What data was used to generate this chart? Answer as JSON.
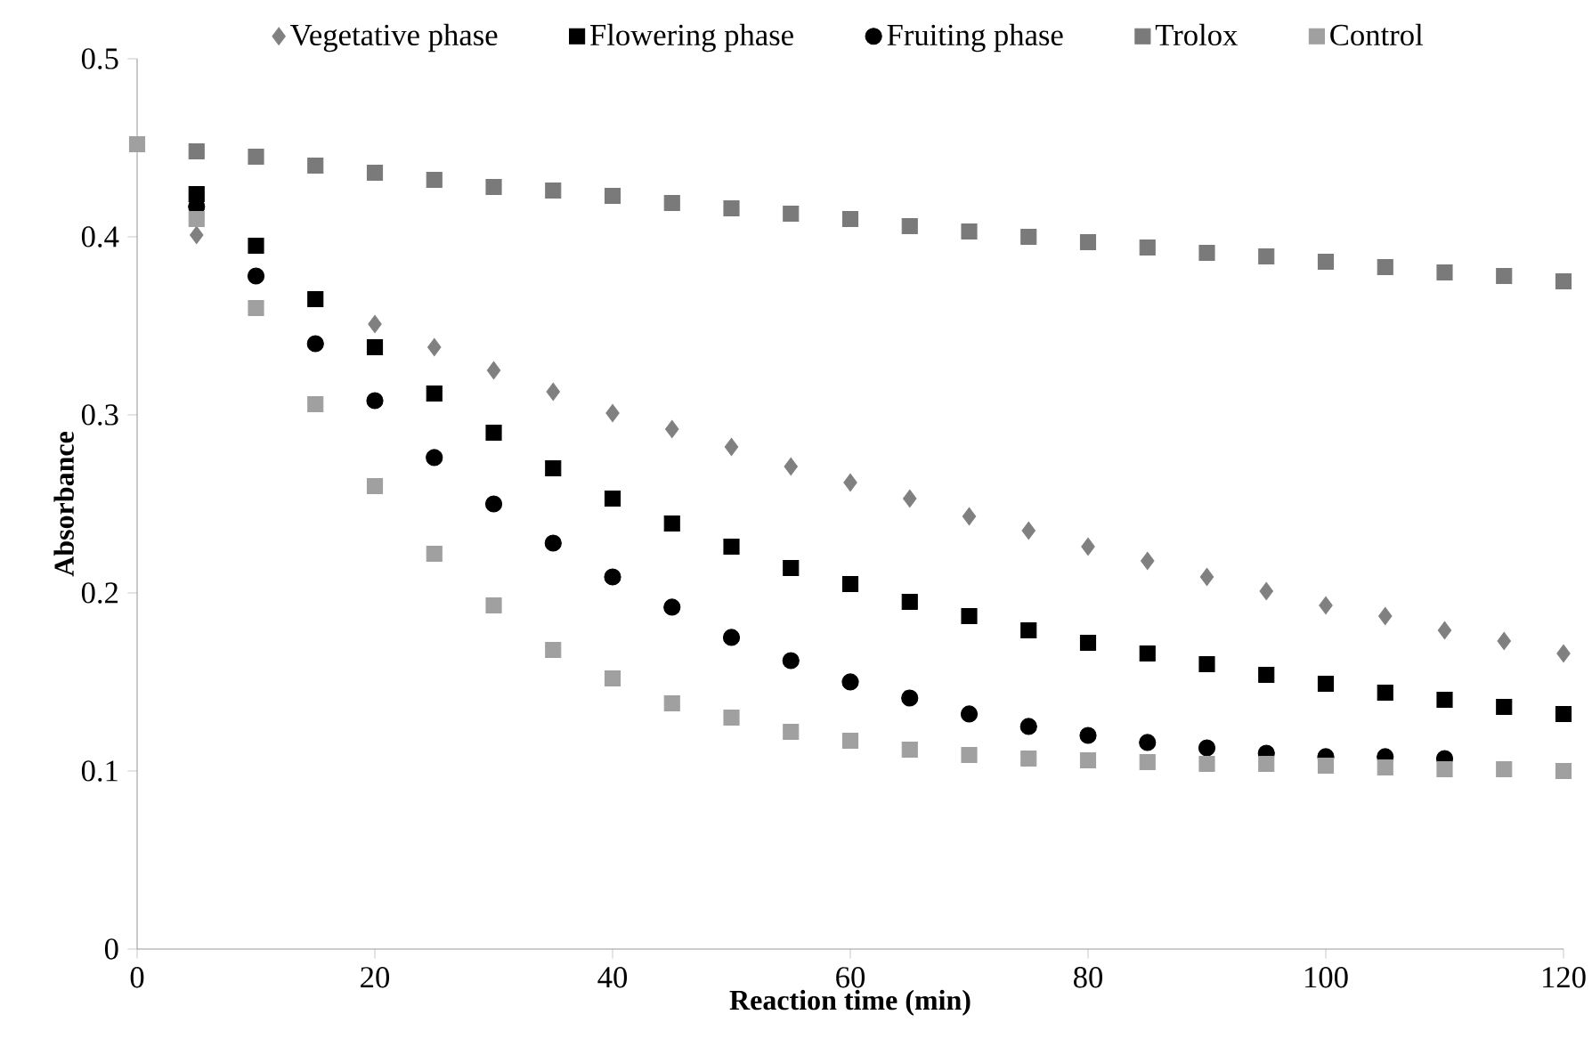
{
  "chart_data": {
    "type": "scatter",
    "xlabel": "Reaction time (min)",
    "ylabel": "Absorbance",
    "x": [
      0,
      5,
      10,
      15,
      20,
      25,
      30,
      35,
      40,
      45,
      50,
      55,
      60,
      65,
      70,
      75,
      80,
      85,
      90,
      95,
      100,
      105,
      110,
      115,
      120
    ],
    "xlim": [
      0,
      120
    ],
    "xticks": [
      0,
      20,
      40,
      60,
      80,
      100,
      120
    ],
    "ylim": [
      0,
      0.5
    ],
    "yticks": [
      0,
      0.1,
      0.2,
      0.3,
      0.4,
      0.5
    ],
    "grid": false,
    "legend": "top",
    "series": [
      {
        "name": "Vegetative phase",
        "color": "#808080",
        "marker": "diamond",
        "values": [
          null,
          0.401,
          null,
          null,
          0.351,
          0.338,
          0.325,
          0.313,
          0.301,
          0.292,
          0.282,
          0.271,
          0.262,
          0.253,
          0.243,
          0.235,
          0.226,
          0.218,
          0.209,
          0.201,
          0.193,
          0.187,
          0.179,
          0.173,
          0.166
        ]
      },
      {
        "name": "Flowering  phase",
        "color": "#000000",
        "marker": "square",
        "values": [
          null,
          0.424,
          0.395,
          0.365,
          0.338,
          0.312,
          0.29,
          0.27,
          0.253,
          0.239,
          0.226,
          0.214,
          0.205,
          0.195,
          0.187,
          0.179,
          0.172,
          0.166,
          0.16,
          0.154,
          0.149,
          0.144,
          0.14,
          0.136,
          0.132
        ]
      },
      {
        "name": "Fruiting  phase",
        "color": "#000000",
        "marker": "circle",
        "values": [
          null,
          0.417,
          0.378,
          0.34,
          0.308,
          0.276,
          0.25,
          0.228,
          0.209,
          0.192,
          0.175,
          0.162,
          0.15,
          0.141,
          0.132,
          0.125,
          0.12,
          0.116,
          0.113,
          0.11,
          0.108,
          0.108,
          0.107,
          null,
          null
        ]
      },
      {
        "name": "Trolox",
        "color": "#7a7a7a",
        "marker": "square",
        "values": [
          null,
          0.448,
          0.445,
          0.44,
          0.436,
          0.432,
          0.428,
          0.426,
          0.423,
          0.419,
          0.416,
          0.413,
          0.41,
          0.406,
          0.403,
          0.4,
          0.397,
          0.394,
          0.391,
          0.389,
          0.386,
          0.383,
          0.38,
          0.378,
          0.375
        ]
      },
      {
        "name": "Control",
        "color": "#a0a0a0",
        "marker": "square",
        "values": [
          0.452,
          0.41,
          0.36,
          0.306,
          0.26,
          0.222,
          0.193,
          0.168,
          0.152,
          0.138,
          0.13,
          0.122,
          0.117,
          0.112,
          0.109,
          0.107,
          0.106,
          0.105,
          0.104,
          0.104,
          0.103,
          0.102,
          0.101,
          0.101,
          0.1
        ]
      }
    ]
  }
}
